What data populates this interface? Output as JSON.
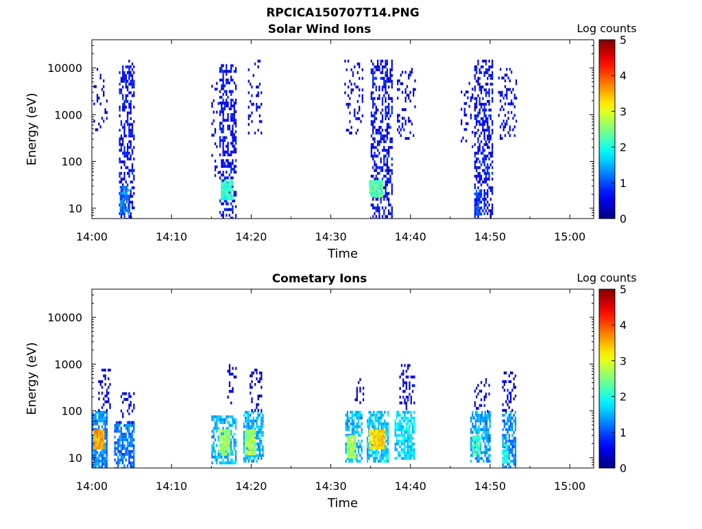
{
  "figure": {
    "title": "RPCICA150707T14.PNG"
  },
  "chart_data": [
    {
      "type": "heatmap",
      "title": "Solar Wind Ions",
      "xlabel": "Time",
      "ylabel": "Energy (eV)",
      "x_ticks": [
        "14:00",
        "14:10",
        "14:20",
        "14:30",
        "14:40",
        "14:50",
        "15:00"
      ],
      "y_ticks": [
        "10",
        "100",
        "1000",
        "10000"
      ],
      "y_scale": "log",
      "ylim_ev": [
        6,
        40000
      ],
      "xlim_minutes_after_14_00": [
        0,
        63
      ],
      "colorbar": {
        "label": "Log counts",
        "ticks": [
          "0",
          "1",
          "2",
          "3",
          "4",
          "5"
        ],
        "range": [
          0,
          5
        ]
      },
      "clusters": [
        {
          "t_min": 0.2,
          "t_max": 1.8,
          "e_min": 500,
          "e_max": 10000,
          "level": 0.5,
          "density": 0.2
        },
        {
          "t_min": 3.4,
          "t_max": 5.2,
          "e_min": 6,
          "e_max": 15000,
          "level": 0.6,
          "density": 0.45
        },
        {
          "t_min": 3.5,
          "t_max": 4.6,
          "e_min": 8,
          "e_max": 30,
          "level": 1.2,
          "density": 0.8
        },
        {
          "t_min": 15.0,
          "t_max": 15.9,
          "e_min": 50,
          "e_max": 5000,
          "level": 0.5,
          "density": 0.1
        },
        {
          "t_min": 16.0,
          "t_max": 18.0,
          "e_min": 6,
          "e_max": 12000,
          "level": 0.6,
          "density": 0.45
        },
        {
          "t_min": 16.2,
          "t_max": 17.6,
          "e_min": 15,
          "e_max": 40,
          "level": 2.1,
          "density": 0.95
        },
        {
          "t_min": 19.6,
          "t_max": 21.3,
          "e_min": 400,
          "e_max": 15000,
          "level": 0.5,
          "density": 0.2
        },
        {
          "t_min": 31.7,
          "t_max": 34.0,
          "e_min": 400,
          "e_max": 15000,
          "level": 0.5,
          "density": 0.18
        },
        {
          "t_min": 35.0,
          "t_max": 37.6,
          "e_min": 6,
          "e_max": 15000,
          "level": 0.6,
          "density": 0.45
        },
        {
          "t_min": 34.8,
          "t_max": 36.5,
          "e_min": 18,
          "e_max": 40,
          "level": 2.3,
          "density": 0.95
        },
        {
          "t_min": 38.3,
          "t_max": 40.5,
          "e_min": 300,
          "e_max": 10000,
          "level": 0.5,
          "density": 0.2
        },
        {
          "t_min": 46.3,
          "t_max": 47.8,
          "e_min": 200,
          "e_max": 5000,
          "level": 0.5,
          "density": 0.12
        },
        {
          "t_min": 48.0,
          "t_max": 50.2,
          "e_min": 6,
          "e_max": 15000,
          "level": 0.6,
          "density": 0.45
        },
        {
          "t_min": 48.0,
          "t_max": 48.8,
          "e_min": 8,
          "e_max": 25,
          "level": 0.9,
          "density": 0.8
        },
        {
          "t_min": 51.0,
          "t_max": 53.2,
          "e_min": 300,
          "e_max": 10000,
          "level": 0.5,
          "density": 0.2
        }
      ]
    },
    {
      "type": "heatmap",
      "title": "Cometary Ions",
      "xlabel": "Time",
      "ylabel": "Energy (eV)",
      "x_ticks": [
        "14:00",
        "14:10",
        "14:20",
        "14:30",
        "14:40",
        "14:50",
        "15:00"
      ],
      "y_ticks": [
        "10",
        "100",
        "1000",
        "10000"
      ],
      "y_scale": "log",
      "ylim_ev": [
        6,
        40000
      ],
      "xlim_minutes_after_14_00": [
        0,
        63
      ],
      "colorbar": {
        "label": "Log counts",
        "ticks": [
          "0",
          "1",
          "2",
          "3",
          "4",
          "5"
        ],
        "range": [
          0,
          5
        ]
      },
      "clusters": [
        {
          "t_min": 0.0,
          "t_max": 1.8,
          "e_min": 6,
          "e_max": 100,
          "level": 1.3,
          "density": 0.75
        },
        {
          "t_min": 0.2,
          "t_max": 1.4,
          "e_min": 15,
          "e_max": 40,
          "level": 3.6,
          "density": 1.0
        },
        {
          "t_min": 0.8,
          "t_max": 2.2,
          "e_min": 100,
          "e_max": 800,
          "level": 0.5,
          "density": 0.25
        },
        {
          "t_min": 2.8,
          "t_max": 5.2,
          "e_min": 6,
          "e_max": 60,
          "level": 1.2,
          "density": 0.65
        },
        {
          "t_min": 3.4,
          "t_max": 5.2,
          "e_min": 60,
          "e_max": 250,
          "level": 0.5,
          "density": 0.25
        },
        {
          "t_min": 15.0,
          "t_max": 18.0,
          "e_min": 8,
          "e_max": 80,
          "level": 1.5,
          "density": 0.6
        },
        {
          "t_min": 16.0,
          "t_max": 17.2,
          "e_min": 12,
          "e_max": 40,
          "level": 2.7,
          "density": 0.9
        },
        {
          "t_min": 17.0,
          "t_max": 18.0,
          "e_min": 150,
          "e_max": 1000,
          "level": 0.5,
          "density": 0.2
        },
        {
          "t_min": 19.0,
          "t_max": 21.4,
          "e_min": 8,
          "e_max": 100,
          "level": 1.5,
          "density": 0.7
        },
        {
          "t_min": 19.2,
          "t_max": 20.4,
          "e_min": 12,
          "e_max": 40,
          "level": 2.7,
          "density": 0.9
        },
        {
          "t_min": 19.8,
          "t_max": 21.3,
          "e_min": 100,
          "e_max": 800,
          "level": 0.5,
          "density": 0.3
        },
        {
          "t_min": 31.8,
          "t_max": 33.8,
          "e_min": 8,
          "e_max": 100,
          "level": 1.5,
          "density": 0.65
        },
        {
          "t_min": 32.0,
          "t_max": 33.0,
          "e_min": 10,
          "e_max": 30,
          "level": 2.7,
          "density": 0.9
        },
        {
          "t_min": 33.0,
          "t_max": 34.0,
          "e_min": 150,
          "e_max": 500,
          "level": 0.5,
          "density": 0.2
        },
        {
          "t_min": 34.5,
          "t_max": 37.2,
          "e_min": 8,
          "e_max": 100,
          "level": 1.6,
          "density": 0.7
        },
        {
          "t_min": 34.8,
          "t_max": 36.6,
          "e_min": 15,
          "e_max": 40,
          "level": 3.3,
          "density": 0.95
        },
        {
          "t_min": 38.0,
          "t_max": 40.5,
          "e_min": 10,
          "e_max": 100,
          "level": 1.7,
          "density": 0.7
        },
        {
          "t_min": 38.6,
          "t_max": 40.5,
          "e_min": 100,
          "e_max": 1000,
          "level": 0.5,
          "density": 0.3
        },
        {
          "t_min": 47.5,
          "t_max": 50.0,
          "e_min": 8,
          "e_max": 100,
          "level": 1.4,
          "density": 0.65
        },
        {
          "t_min": 47.8,
          "t_max": 48.6,
          "e_min": 12,
          "e_max": 30,
          "level": 2.2,
          "density": 0.9
        },
        {
          "t_min": 48.0,
          "t_max": 49.8,
          "e_min": 100,
          "e_max": 500,
          "level": 0.5,
          "density": 0.2
        },
        {
          "t_min": 51.5,
          "t_max": 53.2,
          "e_min": 6,
          "e_max": 100,
          "level": 1.3,
          "density": 0.65
        },
        {
          "t_min": 51.5,
          "t_max": 52.2,
          "e_min": 8,
          "e_max": 20,
          "level": 2.0,
          "density": 0.9
        },
        {
          "t_min": 51.5,
          "t_max": 53.2,
          "e_min": 100,
          "e_max": 800,
          "level": 0.5,
          "density": 0.3
        }
      ]
    }
  ]
}
